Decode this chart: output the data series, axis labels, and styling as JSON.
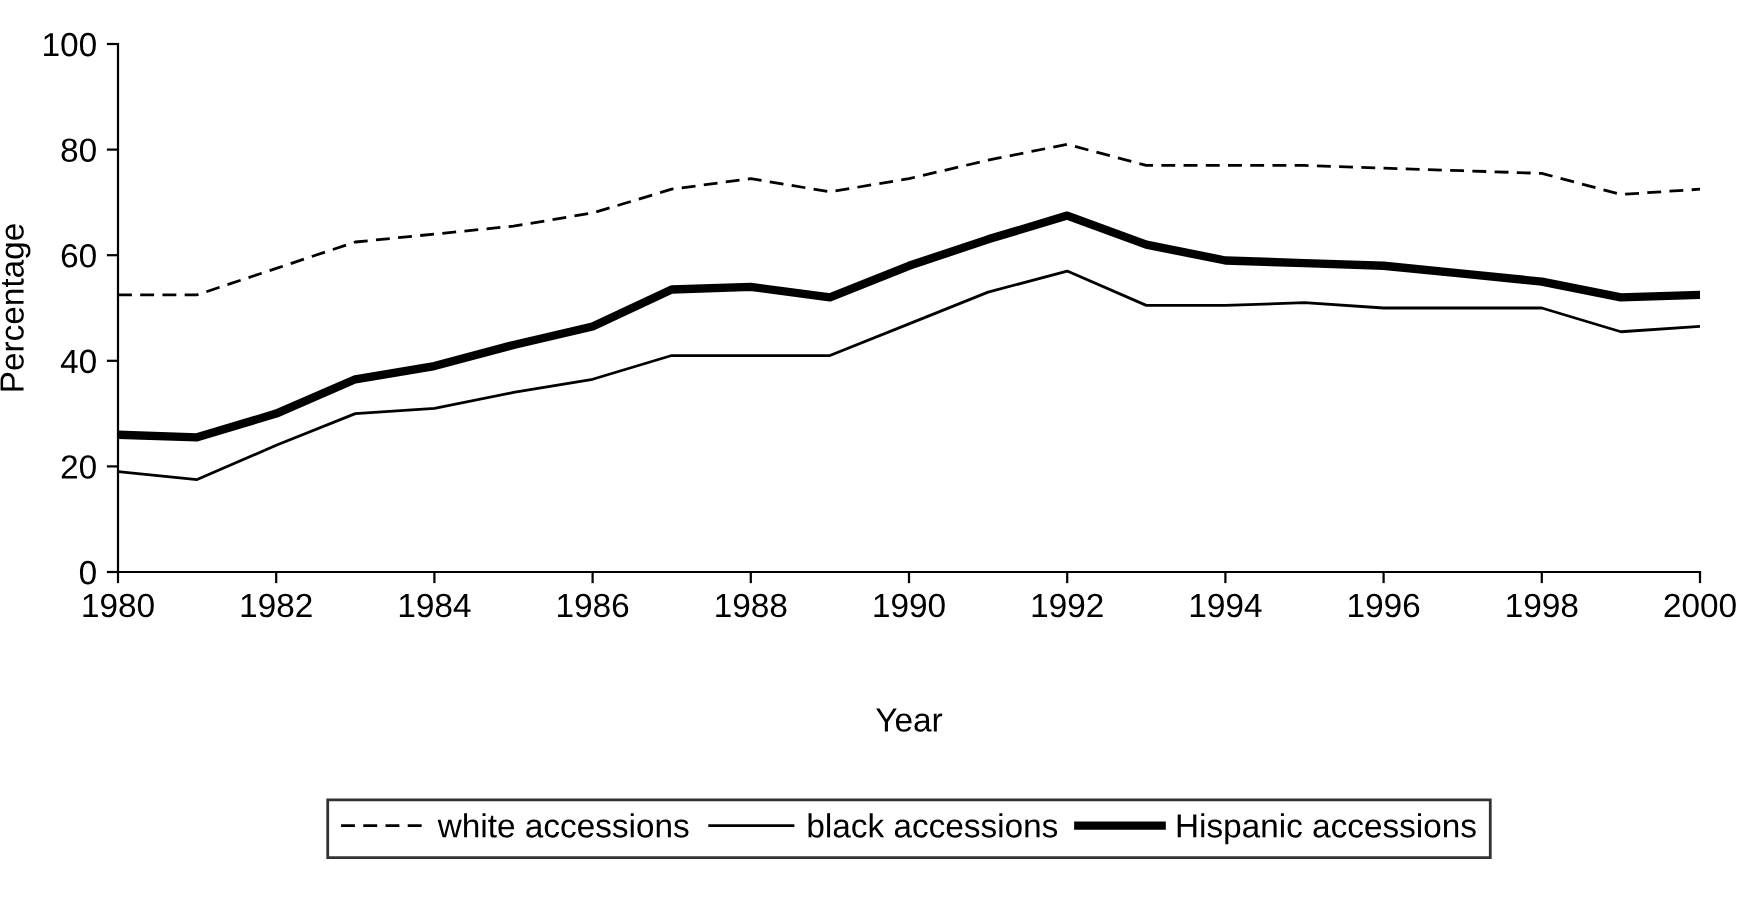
{
  "chart_data": {
    "type": "line",
    "xlabel": "Year",
    "ylabel": "Percentage",
    "x": [
      1980,
      1981,
      1982,
      1983,
      1984,
      1985,
      1986,
      1987,
      1988,
      1989,
      1990,
      1991,
      1992,
      1993,
      1994,
      1995,
      1996,
      1997,
      1998,
      1999,
      2000
    ],
    "xlim": [
      1980,
      2000
    ],
    "xticks": [
      1980,
      1982,
      1984,
      1986,
      1988,
      1990,
      1992,
      1994,
      1996,
      1998,
      2000
    ],
    "ylim": [
      0,
      100
    ],
    "yticks": [
      0,
      20,
      40,
      60,
      80,
      100
    ],
    "grid": false,
    "legend": "bottom",
    "marker": "none",
    "series": [
      {
        "name": "white accessions",
        "color": "#000000",
        "line_style": "dashed",
        "values": [
          52.5,
          52.5,
          57.5,
          62.5,
          64,
          65.5,
          68,
          72.5,
          74.5,
          72,
          74.5,
          78,
          81,
          77,
          77,
          77,
          76.5,
          76,
          75.5,
          71.5,
          72.5
        ]
      },
      {
        "name": "black accessions",
        "color": "#000000",
        "line_style": "solid",
        "values": [
          19,
          17.5,
          24,
          30,
          31,
          34,
          36.5,
          41,
          41,
          41,
          47,
          53,
          57,
          50.5,
          50.5,
          51,
          50,
          50,
          50,
          45.5,
          46.5
        ]
      },
      {
        "name": "Hispanic accessions",
        "color": "#000000",
        "line_style": "solid",
        "values": [
          26,
          25.5,
          30,
          36.5,
          39,
          43,
          46.5,
          53.5,
          54,
          52,
          58,
          63,
          67.5,
          62,
          59,
          58.5,
          58,
          56.5,
          55,
          52,
          52.5
        ]
      }
    ]
  }
}
